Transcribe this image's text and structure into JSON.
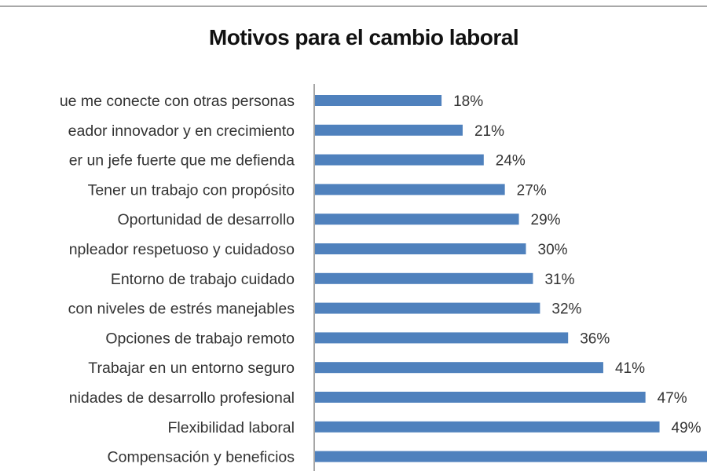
{
  "chart_data": {
    "type": "bar",
    "orientation": "horizontal",
    "title": "Motivos para el cambio laboral",
    "xlabel": "",
    "ylabel": "",
    "grid": false,
    "bar_color": "#4f81bd",
    "categories": [
      "ue me conecte con otras personas",
      "eador innovador y en crecimiento",
      "er un jefe fuerte que me defienda",
      "Tener un trabajo con propósito",
      "Oportunidad de desarrollo",
      "npleador respetuoso y cuidadoso",
      "Entorno de trabajo cuidado",
      "con niveles de estrés manejables",
      "Opciones de trabajo remoto",
      "Trabajar en un entorno seguro",
      "nidades de desarrollo profesional",
      "Flexibilidad laboral",
      "Compensación y beneficios"
    ],
    "values": [
      18,
      21,
      24,
      27,
      29,
      30,
      31,
      32,
      36,
      41,
      47,
      49,
      null
    ],
    "data_labels": [
      "18%",
      "21%",
      "24%",
      "27%",
      "29%",
      "30%",
      "31%",
      "32%",
      "36%",
      "41%",
      "47%",
      "49%",
      ""
    ]
  }
}
